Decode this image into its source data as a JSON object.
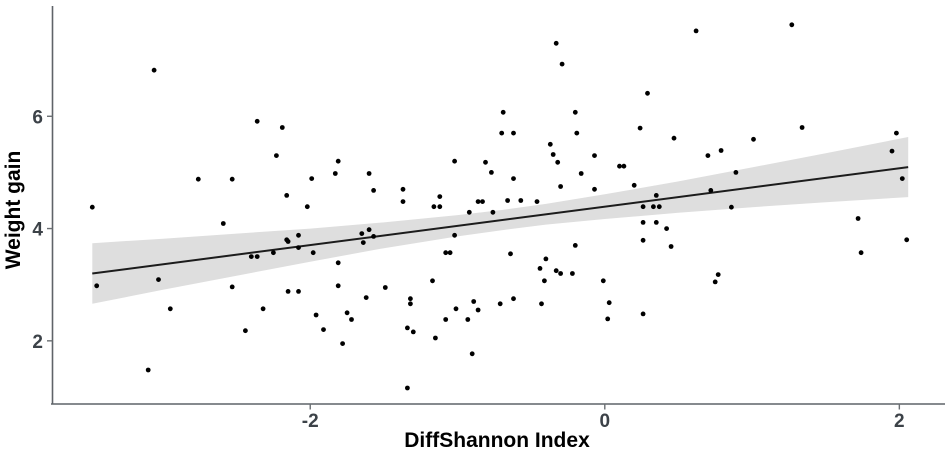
{
  "chart_data": {
    "type": "scatter",
    "title": "",
    "xlabel": "DiffShannon Index",
    "ylabel": "Weight gain",
    "x_ticks": [
      -2,
      0,
      2
    ],
    "y_ticks": [
      2,
      4,
      6
    ],
    "xlim": [
      -3.75,
      2.31
    ],
    "ylim": [
      0.875,
      7.893
    ],
    "grid": false,
    "legend": "none",
    "points": [
      [
        -3.06,
        6.82
      ],
      [
        -2.36,
        5.91
      ],
      [
        -2.19,
        5.8
      ],
      [
        -2.23,
        5.3
      ],
      [
        -2.76,
        4.88
      ],
      [
        -2.53,
        4.88
      ],
      [
        -1.99,
        4.89
      ],
      [
        -2.16,
        4.59
      ],
      [
        -2.02,
        4.39
      ],
      [
        -3.48,
        4.38
      ],
      [
        -2.59,
        4.09
      ],
      [
        -0.33,
        7.3
      ],
      [
        -0.29,
        6.93
      ],
      [
        -0.69,
        6.07
      ],
      [
        -0.2,
        6.07
      ],
      [
        -0.7,
        5.7
      ],
      [
        -0.62,
        5.7
      ],
      [
        -0.19,
        5.7
      ],
      [
        0.24,
        5.79
      ],
      [
        -0.37,
        5.5
      ],
      [
        -0.35,
        5.32
      ],
      [
        -0.32,
        5.18
      ],
      [
        -0.07,
        5.3
      ],
      [
        -1.81,
        5.2
      ],
      [
        -1.02,
        5.2
      ],
      [
        -0.81,
        5.18
      ],
      [
        -1.83,
        4.98
      ],
      [
        -1.6,
        4.98
      ],
      [
        -0.77,
        5.0
      ],
      [
        -0.16,
        4.98
      ],
      [
        -0.62,
        4.89
      ],
      [
        0.1,
        5.11
      ],
      [
        0.13,
        5.11
      ],
      [
        -0.07,
        4.7
      ],
      [
        -0.3,
        4.75
      ],
      [
        -1.57,
        4.68
      ],
      [
        -1.37,
        4.7
      ],
      [
        -1.37,
        4.48
      ],
      [
        -1.12,
        4.57
      ],
      [
        -1.16,
        4.39
      ],
      [
        -1.12,
        4.39
      ],
      [
        -0.92,
        4.29
      ],
      [
        -0.76,
        4.29
      ],
      [
        -0.86,
        4.48
      ],
      [
        -0.83,
        4.48
      ],
      [
        -0.66,
        4.5
      ],
      [
        -0.57,
        4.5
      ],
      [
        -0.46,
        4.48
      ],
      [
        0.2,
        4.77
      ],
      [
        0.62,
        7.52
      ],
      [
        1.27,
        7.63
      ],
      [
        0.29,
        6.41
      ],
      [
        1.34,
        5.8
      ],
      [
        0.47,
        5.61
      ],
      [
        1.01,
        5.59
      ],
      [
        1.98,
        5.7
      ],
      [
        0.79,
        5.39
      ],
      [
        0.7,
        5.3
      ],
      [
        1.95,
        5.38
      ],
      [
        0.89,
        5.0
      ],
      [
        2.02,
        4.89
      ],
      [
        0.72,
        4.68
      ],
      [
        0.35,
        4.59
      ],
      [
        0.26,
        4.39
      ],
      [
        0.33,
        4.39
      ],
      [
        0.37,
        4.39
      ],
      [
        0.86,
        4.38
      ],
      [
        0.26,
        4.11
      ],
      [
        0.35,
        4.11
      ],
      [
        0.42,
        4.0
      ],
      [
        0.26,
        3.79
      ],
      [
        0.45,
        3.68
      ],
      [
        1.72,
        4.18
      ],
      [
        2.05,
        3.8
      ],
      [
        1.74,
        3.57
      ],
      [
        0.77,
        3.18
      ],
      [
        0.75,
        3.05
      ],
      [
        0.26,
        2.48
      ],
      [
        -1.65,
        3.91
      ],
      [
        -1.6,
        3.98
      ],
      [
        -1.57,
        3.86
      ],
      [
        -1.64,
        3.75
      ],
      [
        -1.02,
        3.88
      ],
      [
        -1.08,
        3.57
      ],
      [
        -1.05,
        3.57
      ],
      [
        -0.64,
        3.55
      ],
      [
        -0.2,
        3.7
      ],
      [
        -0.4,
        3.46
      ],
      [
        -0.44,
        3.29
      ],
      [
        -0.33,
        3.25
      ],
      [
        -0.3,
        3.2
      ],
      [
        -0.22,
        3.2
      ],
      [
        -0.41,
        3.07
      ],
      [
        -0.01,
        3.07
      ],
      [
        -1.81,
        3.39
      ],
      [
        -1.81,
        2.98
      ],
      [
        -1.62,
        2.77
      ],
      [
        -1.49,
        2.95
      ],
      [
        -1.17,
        3.07
      ],
      [
        -1.32,
        2.75
      ],
      [
        -1.32,
        2.66
      ],
      [
        -0.89,
        2.7
      ],
      [
        -0.86,
        2.55
      ],
      [
        -0.71,
        2.66
      ],
      [
        -0.62,
        2.75
      ],
      [
        -1.75,
        2.5
      ],
      [
        -1.72,
        2.38
      ],
      [
        -1.34,
        2.23
      ],
      [
        -1.3,
        2.16
      ],
      [
        -1.15,
        2.05
      ],
      [
        -1.08,
        2.38
      ],
      [
        -1.01,
        2.57
      ],
      [
        -0.93,
        2.38
      ],
      [
        -1.91,
        2.2
      ],
      [
        -1.78,
        1.95
      ],
      [
        -0.9,
        1.77
      ],
      [
        -1.34,
        1.16
      ],
      [
        -0.43,
        2.66
      ],
      [
        0.03,
        2.68
      ],
      [
        0.02,
        2.39
      ],
      [
        -2.4,
        3.5
      ],
      [
        -2.36,
        3.5
      ],
      [
        -2.25,
        3.57
      ],
      [
        -2.15,
        3.77
      ],
      [
        -2.08,
        3.66
      ],
      [
        -1.98,
        3.57
      ],
      [
        -3.45,
        2.98
      ],
      [
        -3.03,
        3.09
      ],
      [
        -2.95,
        2.57
      ],
      [
        -2.53,
        2.96
      ],
      [
        -2.44,
        2.18
      ],
      [
        -2.32,
        2.57
      ],
      [
        -2.15,
        2.88
      ],
      [
        -2.08,
        2.88
      ],
      [
        -1.96,
        2.46
      ],
      [
        -3.1,
        1.48
      ],
      [
        -2.16,
        3.8
      ],
      [
        -2.08,
        3.88
      ]
    ],
    "regression_line": {
      "slope": 0.342,
      "intercept": 4.39,
      "x_start": -3.48,
      "x_end": 2.06,
      "y_start": 3.2,
      "y_end": 5.09
    },
    "confidence_band": {
      "x": [
        -3.48,
        -3.0,
        -2.5,
        -2.0,
        -1.5,
        -1.0,
        -0.7,
        -0.4,
        0.0,
        0.5,
        1.0,
        1.5,
        2.06
      ],
      "upper": [
        3.74,
        3.82,
        3.91,
        4.0,
        4.11,
        4.24,
        4.33,
        4.44,
        4.61,
        4.84,
        5.09,
        5.34,
        5.63
      ],
      "lower": [
        2.66,
        2.91,
        3.16,
        3.41,
        3.65,
        3.86,
        3.97,
        4.07,
        4.17,
        4.28,
        4.38,
        4.47,
        4.56
      ]
    },
    "colors": {
      "point": "#000000",
      "line": "#1c1c1c",
      "band": "#dedede",
      "axis": "#5f6368",
      "tick": "#6b6f73",
      "tick_label": "#3c4248",
      "axis_title": "#000000",
      "background": "#ffffff"
    }
  }
}
